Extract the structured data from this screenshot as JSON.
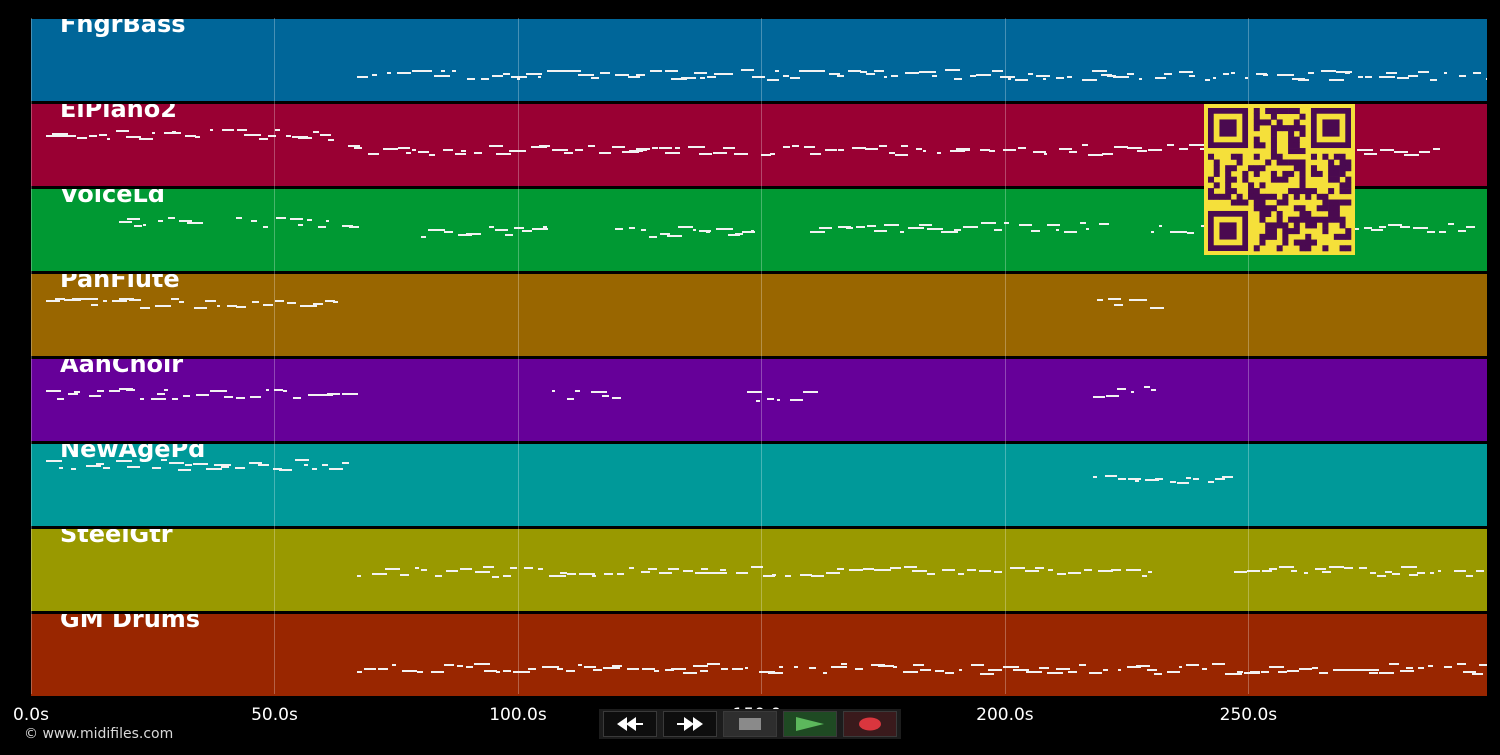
{
  "tracks": [
    {
      "name": "FngrBass",
      "color": "#006699"
    },
    {
      "name": "ElPiano2",
      "color": "#990033"
    },
    {
      "name": "VoiceLd",
      "color": "#009933"
    },
    {
      "name": "PanFlute",
      "color": "#996600"
    },
    {
      "name": "AahChoir",
      "color": "#660099"
    },
    {
      "name": "NewAgePd",
      "color": "#009999"
    },
    {
      "name": "SteelGtr",
      "color": "#999900"
    },
    {
      "name": "GM Drums",
      "color": "#992600"
    }
  ],
  "timeline": {
    "ticks": [
      "0.0s",
      "50.0s",
      "100.0s",
      "150.0s",
      "200.0s",
      "250.0s"
    ],
    "tick_values": [
      0,
      50,
      100,
      150,
      200,
      250
    ],
    "max_seconds": 299
  },
  "footer": {
    "copyright": "© www.midifiles.com"
  },
  "transport": {
    "rewind_icon": "rewind-icon",
    "forward_icon": "fast-forward-icon",
    "stop_icon": "stop-icon",
    "play_icon": "play-icon",
    "record_icon": "record-icon",
    "stop_color": "#8a8a8a",
    "play_color": "#5cb85c",
    "record_color": "#d9363e"
  },
  "overlay": {
    "qr_fg": "#4a0a50",
    "qr_bg": "#f5e03a"
  }
}
